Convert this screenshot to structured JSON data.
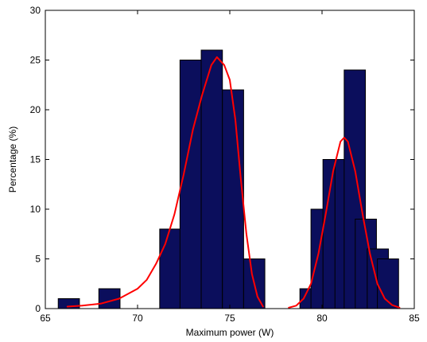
{
  "chart_data": {
    "type": "bar",
    "title": "",
    "xlabel": "Maximum power (W)",
    "ylabel": "Percentage (%)",
    "xlim": [
      65,
      85
    ],
    "ylim": [
      0,
      30
    ],
    "xticks": [
      65,
      70,
      75,
      80,
      85
    ],
    "yticks": [
      0,
      5,
      10,
      15,
      20,
      25,
      30
    ],
    "grid": false,
    "legend": "none",
    "bin_width": 1.15,
    "series": [
      {
        "type": "histogram",
        "bins": [
          {
            "x0": 65.7,
            "value": 1
          },
          {
            "x0": 67.9,
            "value": 2
          },
          {
            "x0": 71.2,
            "value": 8
          },
          {
            "x0": 72.3,
            "value": 25
          },
          {
            "x0": 73.45,
            "value": 26
          },
          {
            "x0": 74.6,
            "value": 22
          },
          {
            "x0": 75.75,
            "value": 5
          },
          {
            "x0": 78.8,
            "value": 2
          },
          {
            "x0": 79.4,
            "value": 10
          },
          {
            "x0": 80.05,
            "value": 15
          },
          {
            "x0": 80.7,
            "value": 15
          },
          {
            "x0": 81.2,
            "value": 24
          },
          {
            "x0": 81.8,
            "value": 9
          },
          {
            "x0": 82.45,
            "value": 6
          },
          {
            "x0": 83.0,
            "value": 5
          }
        ]
      },
      {
        "type": "line",
        "points": [
          [
            66.2,
            0.2
          ],
          [
            67,
            0.3
          ],
          [
            68,
            0.5
          ],
          [
            69,
            1.0
          ],
          [
            70,
            2.0
          ],
          [
            70.5,
            2.9
          ],
          [
            71,
            4.5
          ],
          [
            71.5,
            6.5
          ],
          [
            72,
            9.5
          ],
          [
            72.5,
            13.5
          ],
          [
            73,
            18
          ],
          [
            73.5,
            21.5
          ],
          [
            74,
            24.5
          ],
          [
            74.3,
            25.3
          ],
          [
            74.7,
            24.5
          ],
          [
            75,
            23
          ],
          [
            75.3,
            19
          ],
          [
            75.6,
            13
          ],
          [
            75.9,
            7.5
          ],
          [
            76.2,
            3.5
          ],
          [
            76.5,
            1.2
          ],
          [
            76.8,
            0.2
          ]
        ]
      },
      {
        "type": "line",
        "points": [
          [
            78.2,
            0.1
          ],
          [
            78.6,
            0.3
          ],
          [
            79,
            1.0
          ],
          [
            79.4,
            2.5
          ],
          [
            79.8,
            5.5
          ],
          [
            80.2,
            9.5
          ],
          [
            80.6,
            13.8
          ],
          [
            81,
            16.8
          ],
          [
            81.2,
            17.2
          ],
          [
            81.4,
            16.8
          ],
          [
            81.8,
            13.8
          ],
          [
            82.2,
            9.5
          ],
          [
            82.6,
            5.5
          ],
          [
            83,
            2.5
          ],
          [
            83.4,
            1.0
          ],
          [
            83.8,
            0.35
          ],
          [
            84.2,
            0.1
          ]
        ]
      }
    ],
    "colors": {
      "bar_fill": "#0b0e5c",
      "bar_stroke": "#000000",
      "curve": "#ff0000",
      "axis": "#000000"
    }
  }
}
